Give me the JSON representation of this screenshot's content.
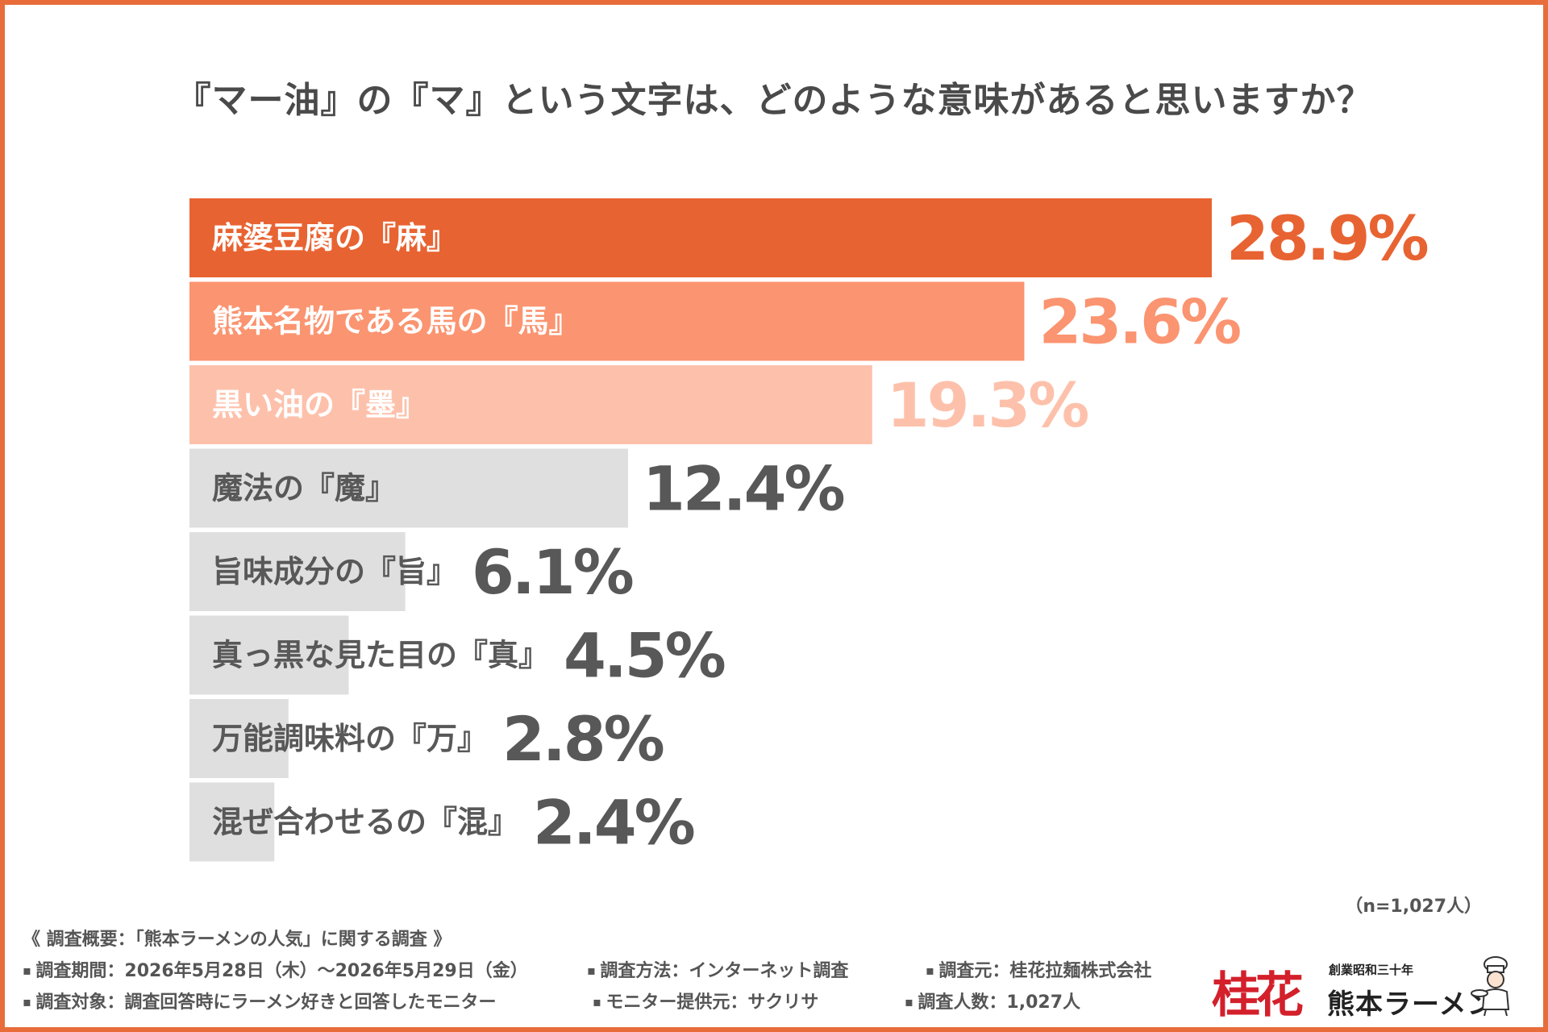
{
  "title": "『マー油』の『マ』という文字は、どのような意味があると思いますか？",
  "colors": {
    "frame": "#e86d3b",
    "bar1": "#e86332",
    "bar2": "#fb9470",
    "bar3": "#fdc1ab",
    "gray": "#dfdfdf",
    "gray_text": "#585858"
  },
  "chart_data": {
    "type": "bar",
    "orientation": "horizontal",
    "categories": [
      "麻婆豆腐の『麻』",
      "熊本名物である馬の『馬』",
      "黒い油の『墨』",
      "魔法の『魔』",
      "旨味成分の『旨』",
      "真っ黒な見た目の『真』",
      "万能調味料の『万』",
      "混ぜ合わせるの『混』"
    ],
    "values": [
      28.9,
      23.6,
      19.3,
      12.4,
      6.1,
      4.5,
      2.8,
      2.4
    ],
    "value_labels": [
      "28.9%",
      "23.6%",
      "19.3%",
      "12.4%",
      "6.1%",
      "4.5%",
      "2.8%",
      "2.4%"
    ],
    "unit": "%",
    "xlim": [
      0,
      28.9
    ]
  },
  "sample_note": "（n=1,027人）",
  "survey": {
    "heading": "《 調査概要：「熊本ラーメンの人気」に関する調査 》",
    "period": "調査期間：2026年5月28日（木）～2026年5月29日（金）",
    "method": "調査方法：インターネット調査",
    "source": "調査元：桂花拉麺株式会社",
    "target": "調査対象：調査回答時にラーメン好きと回答したモニター",
    "provider": "モニター提供元：サクリサ",
    "count": "調査人数：1,027人"
  },
  "logo": {
    "kanji": "桂花",
    "small": "創業昭和三十年",
    "big": "熊本ラーメン"
  }
}
